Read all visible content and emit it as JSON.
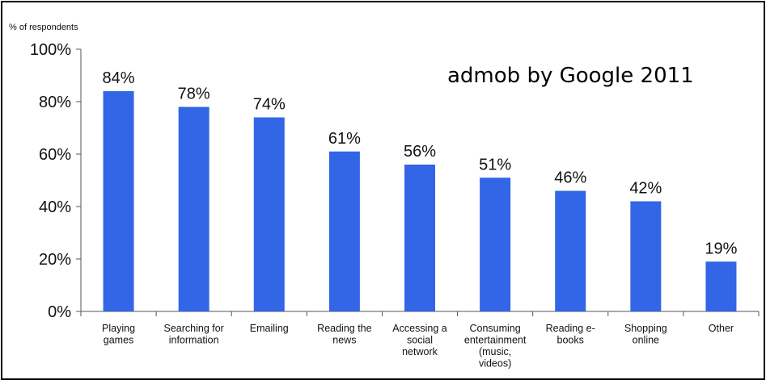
{
  "chart_data": {
    "type": "bar",
    "ylabel": "% of respondents",
    "annotation": "admob by Google 2011",
    "categories": [
      [
        "Playing",
        "games"
      ],
      [
        "Searching for",
        "information"
      ],
      [
        "Emailing"
      ],
      [
        "Reading the",
        "news"
      ],
      [
        "Accessing a",
        "social",
        "network"
      ],
      [
        "Consuming",
        "entertainment",
        "(music,",
        "videos)"
      ],
      [
        "Reading e-",
        "books"
      ],
      [
        "Shopping",
        "online"
      ],
      [
        "Other"
      ]
    ],
    "values": [
      84,
      78,
      74,
      61,
      56,
      51,
      46,
      42,
      19
    ],
    "data_labels": [
      "84%",
      "78%",
      "74%",
      "61%",
      "56%",
      "51%",
      "46%",
      "42%",
      "19%"
    ],
    "ylim": [
      0,
      100
    ],
    "yticks": [
      0,
      20,
      40,
      60,
      80,
      100
    ],
    "ytick_labels": [
      "0%",
      "20%",
      "40%",
      "60%",
      "80%",
      "100%"
    ],
    "grid": false,
    "legend": "none",
    "colors": {
      "bar": "#3366e6",
      "axis": "#555555",
      "text": "#111111"
    }
  }
}
